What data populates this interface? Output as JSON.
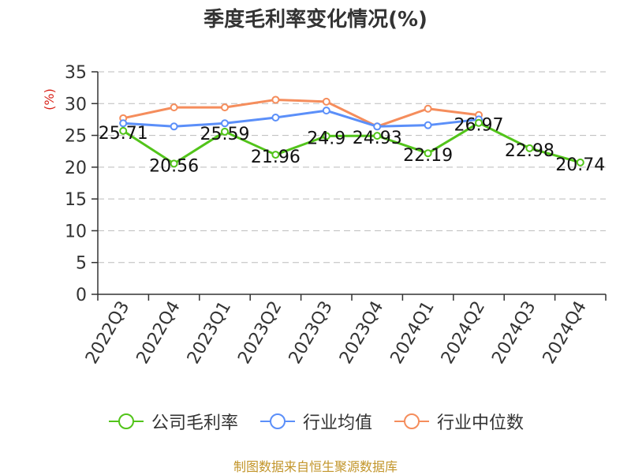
{
  "chart_data": {
    "type": "line",
    "title": "季度毛利率变化情况(%)",
    "ylabel": "(%)",
    "xlabel": "",
    "categories": [
      "2022Q3",
      "2022Q4",
      "2023Q1",
      "2023Q2",
      "2023Q3",
      "2023Q4",
      "2024Q1",
      "2024Q2",
      "2024Q3",
      "2024Q4"
    ],
    "ylim": [
      0,
      35
    ],
    "yticks": [
      0,
      5,
      10,
      15,
      20,
      25,
      30,
      35
    ],
    "grid": true,
    "legend_position": "bottom",
    "series": [
      {
        "name": "公司毛利率",
        "color": "#52c41a",
        "values": [
          25.71,
          20.56,
          25.59,
          21.96,
          24.9,
          24.93,
          22.19,
          26.97,
          22.98,
          20.74
        ],
        "labels": [
          "25.71",
          "20.56",
          "25.59",
          "21.96",
          "24.9",
          "24.93",
          "22.19",
          "26.97",
          "22.98",
          "20.74"
        ],
        "show_labels": true
      },
      {
        "name": "行业均值",
        "color": "#5b8ff9",
        "values": [
          26.9,
          26.4,
          26.9,
          27.8,
          28.9,
          26.4,
          26.6,
          27.5,
          null,
          null
        ],
        "show_labels": false
      },
      {
        "name": "行业中位数",
        "color": "#f58d5c",
        "values": [
          27.7,
          29.4,
          29.4,
          30.6,
          30.3,
          26.4,
          29.2,
          28.2,
          null,
          null
        ],
        "show_labels": false
      }
    ]
  },
  "footer": {
    "source": "制图数据来自恒生聚源数据库"
  }
}
